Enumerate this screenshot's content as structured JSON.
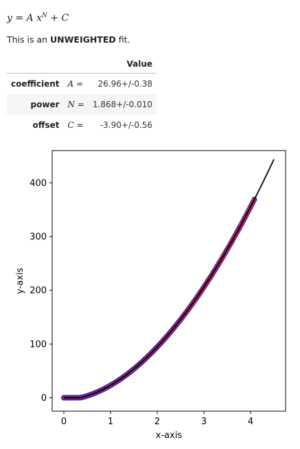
{
  "fit": {
    "formula": {
      "lhs": "y = A x",
      "exponent": "N",
      "rhs": " + C"
    },
    "note_prefix": "This is an ",
    "note_bold": "UNWEIGHTED",
    "note_suffix": " fit.",
    "value_header": "Value",
    "params": [
      {
        "name": "coefficient",
        "symbol": "A =",
        "value": "26.96+/-0.38"
      },
      {
        "name": "power",
        "symbol": "N =",
        "value": "1.868+/-0.010"
      },
      {
        "name": "offset",
        "symbol": "C =",
        "value": "-3.90+/-0.56"
      }
    ]
  },
  "chart_data": {
    "type": "scatter",
    "xlabel": "x-axis",
    "ylabel": "y-axis",
    "xlim": [
      -0.25,
      4.75
    ],
    "ylim": [
      -25,
      460
    ],
    "xticks": [
      0,
      1,
      2,
      3,
      4
    ],
    "yticks": [
      0,
      100,
      200,
      300,
      400
    ],
    "grid": false,
    "points": {
      "x_start": 0.0,
      "x_end": 4.08,
      "count": 140,
      "fill_color": "#e41a1c",
      "edge_color": "#1f2bd6"
    },
    "fit_line": {
      "x_start": 0.0,
      "x_end": 4.5,
      "A": 26.96,
      "N": 1.868,
      "C": -3.9,
      "color": "#000000"
    }
  }
}
